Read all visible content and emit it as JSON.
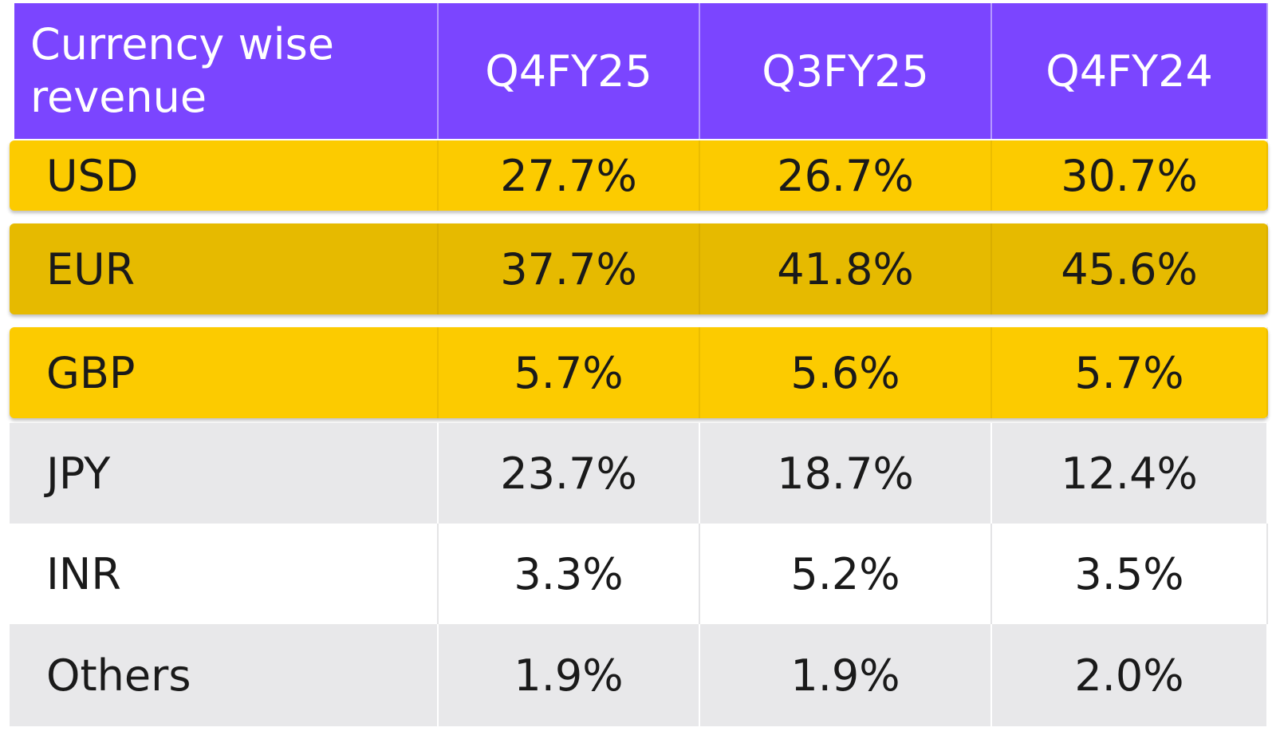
{
  "table": {
    "header": {
      "label": "Currency wise revenue",
      "columns": [
        "Q4FY25",
        "Q3FY25",
        "Q4FY24"
      ]
    },
    "rows": [
      {
        "currency": "USD",
        "values": [
          "27.7%",
          "26.7%",
          "30.7%"
        ]
      },
      {
        "currency": "EUR",
        "values": [
          "37.7%",
          "41.8%",
          "45.6%"
        ]
      },
      {
        "currency": "GBP",
        "values": [
          "5.7%",
          "5.6%",
          "5.7%"
        ]
      },
      {
        "currency": "JPY",
        "values": [
          "23.7%",
          "18.7%",
          "12.4%"
        ]
      },
      {
        "currency": "INR",
        "values": [
          "3.3%",
          "5.2%",
          "3.5%"
        ]
      },
      {
        "currency": "Others",
        "values": [
          "1.9%",
          "1.9%",
          "2.0%"
        ]
      }
    ]
  },
  "colors": {
    "header_bg": "#7b45ff",
    "highlight_yellow": "#fccb00",
    "highlight_dark_yellow": "#e6ba00",
    "row_gray": "#e8e8ea",
    "row_white": "#ffffff"
  }
}
